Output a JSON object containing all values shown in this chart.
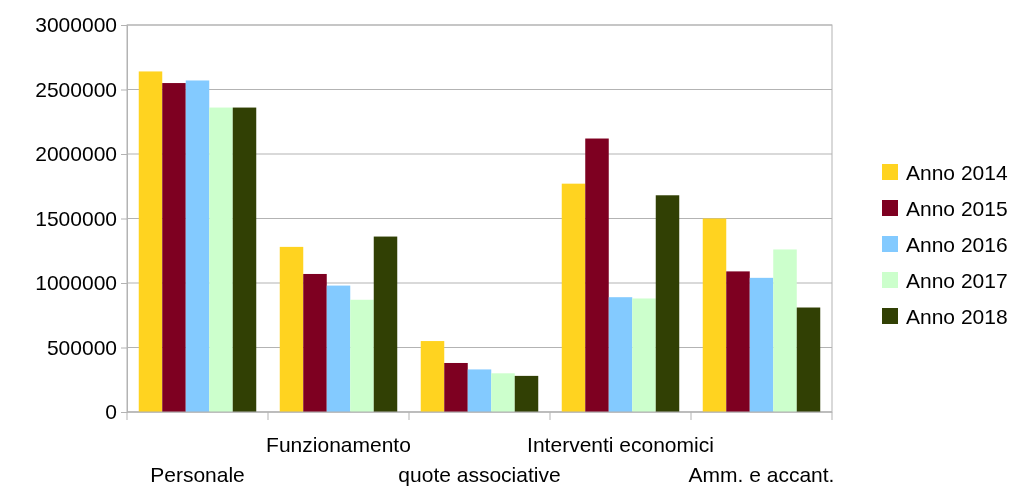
{
  "chart_data": {
    "type": "bar",
    "categories": [
      "Personale",
      "Funzionamento",
      "quote associative",
      "Interventi economici",
      "Amm. e accant."
    ],
    "series": [
      {
        "name": "Anno 2014",
        "color": "#ffd320",
        "values": [
          2640000,
          1280000,
          550000,
          1770000,
          1500000
        ]
      },
      {
        "name": "Anno 2015",
        "color": "#7e0021",
        "values": [
          2550000,
          1070000,
          380000,
          2120000,
          1090000
        ]
      },
      {
        "name": "Anno 2016",
        "color": "#83caff",
        "values": [
          2570000,
          980000,
          330000,
          890000,
          1040000
        ]
      },
      {
        "name": "Anno 2017",
        "color": "#ccffcc",
        "values": [
          2360000,
          870000,
          300000,
          880000,
          1260000
        ]
      },
      {
        "name": "Anno 2018",
        "color": "#314004",
        "values": [
          2360000,
          1360000,
          280000,
          1680000,
          810000
        ]
      }
    ],
    "ylim": [
      0,
      3000000
    ],
    "yticks": [
      0,
      500000,
      1000000,
      1500000,
      2000000,
      2500000,
      3000000
    ],
    "grid": "y",
    "legend": "right"
  }
}
